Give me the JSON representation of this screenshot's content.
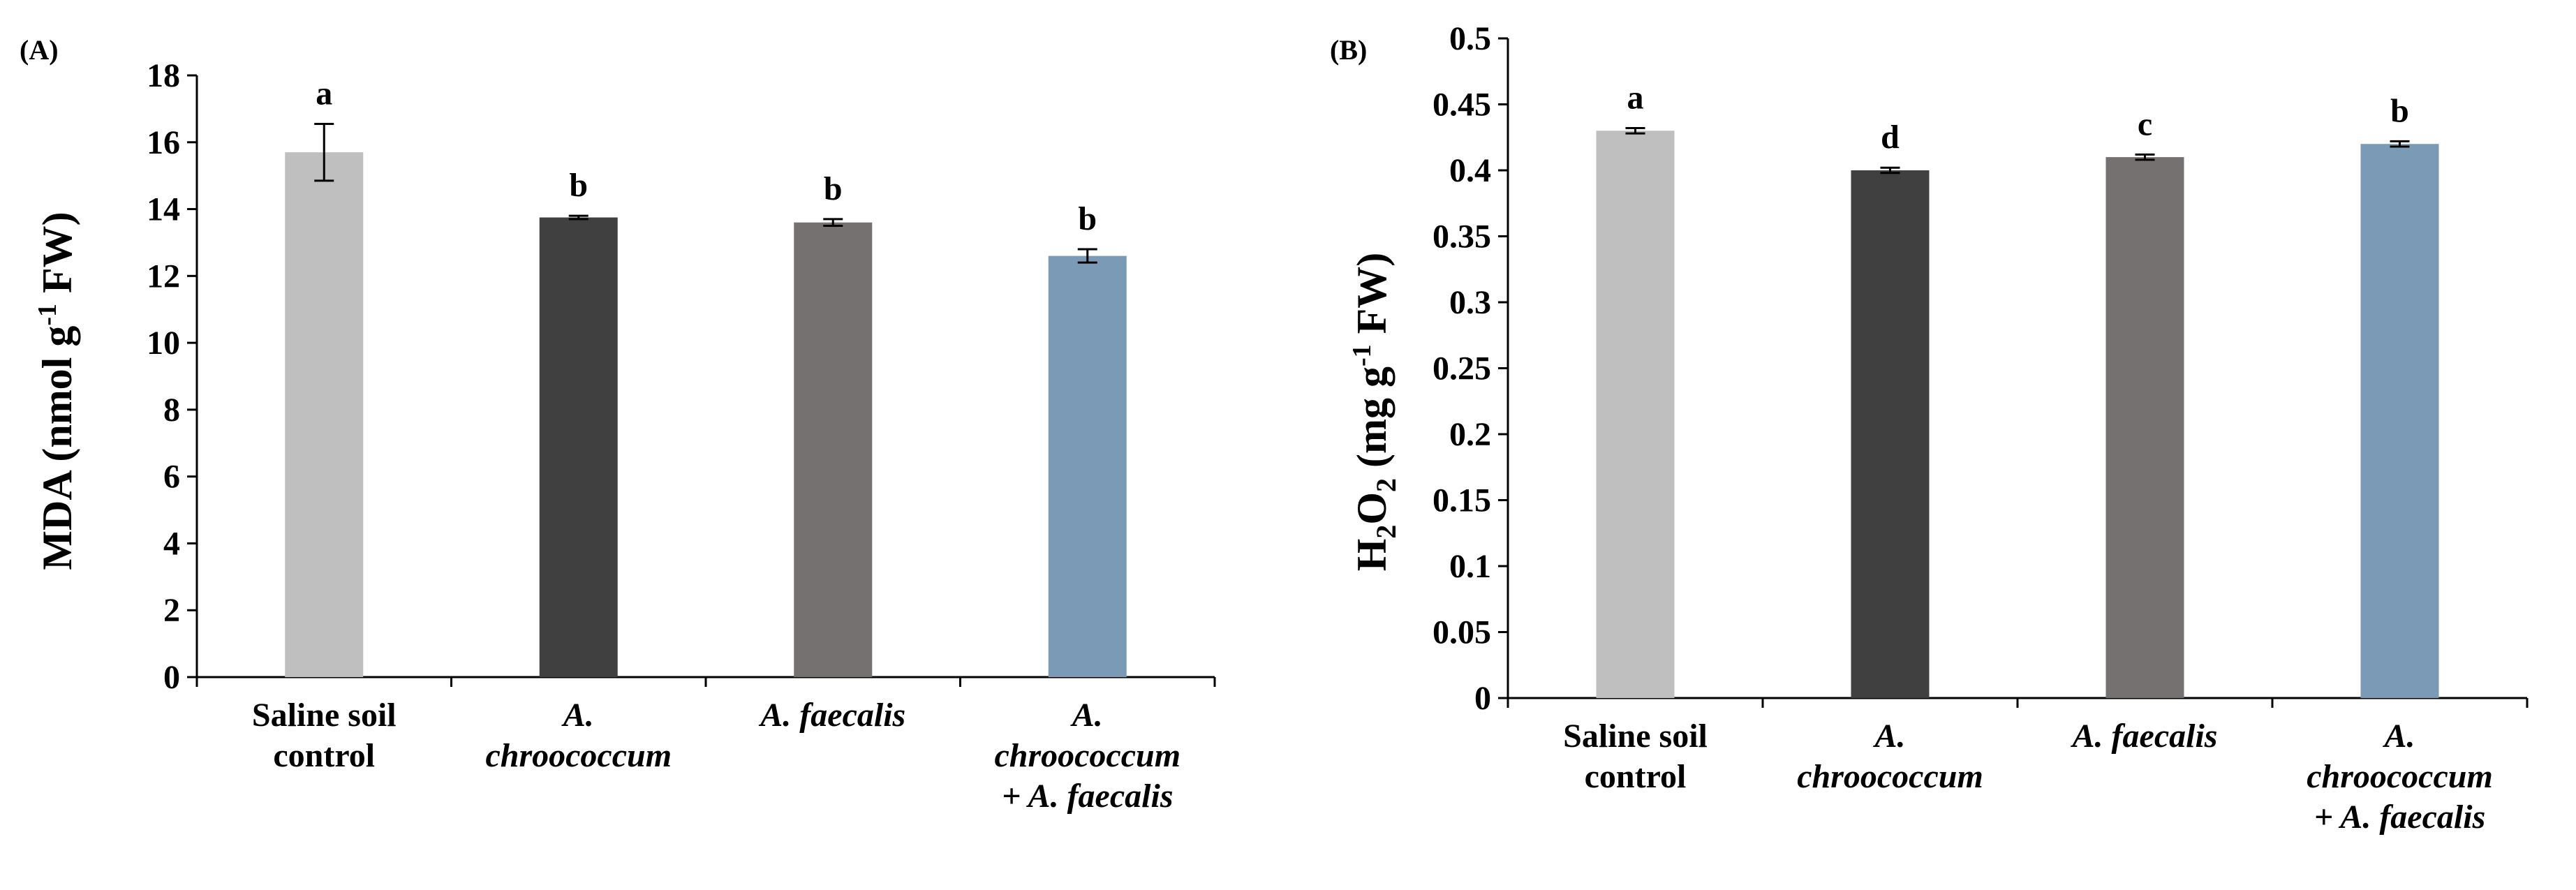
{
  "chart_data": [
    {
      "panel": "(A)",
      "type": "bar",
      "ylabel": {
        "main": "MDA (nmol g",
        "sup": "-1",
        "tail": " FW)"
      },
      "ylim": [
        0,
        18
      ],
      "yticks": [
        0,
        2,
        4,
        6,
        8,
        10,
        12,
        14,
        16,
        18
      ],
      "categories": [
        {
          "lines": [
            "Saline soil",
            "control"
          ],
          "italic": false
        },
        {
          "lines": [
            "A.",
            "chroococcum"
          ],
          "italic": true
        },
        {
          "lines": [
            "A. faecalis"
          ],
          "italic": true
        },
        {
          "lines": [
            "A.",
            "chroococcum",
            "+ A. faecalis"
          ],
          "italic": true
        }
      ],
      "values": [
        15.7,
        13.75,
        13.6,
        12.6
      ],
      "errors": [
        0.85,
        0.05,
        0.1,
        0.2
      ],
      "letters": [
        "a",
        "b",
        "b",
        "b"
      ],
      "colors": [
        "#bfbfbf",
        "#404040",
        "#767171",
        "#7b9ab5"
      ],
      "grid": false
    },
    {
      "panel": "(B)",
      "type": "bar",
      "ylabel": {
        "main": "H",
        "sub1": "2",
        "mid": "O",
        "sub2": "2",
        "tail": " (mg g",
        "sup": "-1",
        "tail2": " FW)"
      },
      "ylim": [
        0,
        0.5
      ],
      "yticks": [
        0,
        0.05,
        0.1,
        0.15,
        0.2,
        0.25,
        0.3,
        0.35,
        0.4,
        0.45,
        0.5
      ],
      "ytick_labels": [
        "0",
        "0.05",
        "0.1",
        "0.15",
        "0.2",
        "0.25",
        "0.3",
        "0.35",
        "0.4",
        "0.45",
        "0.5"
      ],
      "categories": [
        {
          "lines": [
            "Saline soil",
            "control"
          ],
          "italic": false
        },
        {
          "lines": [
            "A.",
            "chroococcum"
          ],
          "italic": true
        },
        {
          "lines": [
            "A. faecalis"
          ],
          "italic": true
        },
        {
          "lines": [
            "A.",
            "chroococcum",
            "+ A. faecalis"
          ],
          "italic": true
        }
      ],
      "values": [
        0.43,
        0.4,
        0.41,
        0.42
      ],
      "errors": [
        0.002,
        0.002,
        0.002,
        0.002
      ],
      "letters": [
        "a",
        "d",
        "c",
        "b"
      ],
      "colors": [
        "#bfbfbf",
        "#404040",
        "#767171",
        "#7b9ab5"
      ],
      "grid": false
    }
  ]
}
